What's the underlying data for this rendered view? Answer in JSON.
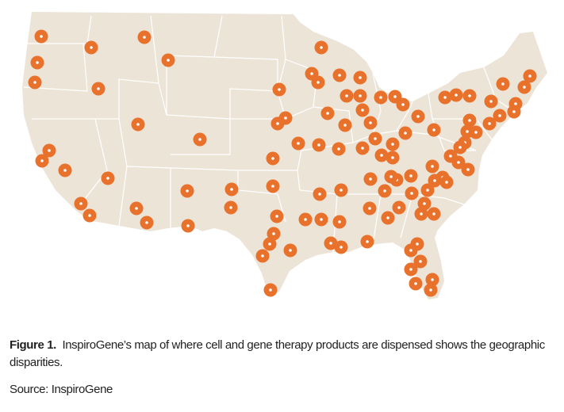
{
  "figure": {
    "label": "Figure 1.",
    "caption": "InspiroGene’s map of where cell and gene therapy products are dispensed shows the geographic disparities.",
    "source_label": "Source:",
    "source": "InspiroGene"
  }
}
